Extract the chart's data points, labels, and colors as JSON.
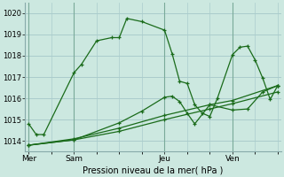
{
  "background_color": "#cce8e0",
  "grid_color": "#aacccc",
  "line_color": "#1a6b1a",
  "title": "Pression niveau de la mer( hPa )",
  "ylim": [
    1013.5,
    1020.5
  ],
  "yticks": [
    1014,
    1015,
    1016,
    1017,
    1018,
    1019,
    1020
  ],
  "xlabel_days": [
    "Mer",
    "Sam",
    "Jeu",
    "Ven"
  ],
  "xlabel_day_positions": [
    0,
    24,
    72,
    108
  ],
  "vline_positions": [
    0,
    24,
    72,
    108
  ],
  "series": [
    {
      "x": [
        0,
        4,
        8,
        24,
        28,
        36,
        44,
        48,
        52,
        60,
        72,
        76,
        80,
        84,
        88,
        92,
        96,
        100,
        108,
        112,
        116,
        120,
        124,
        128,
        132
      ],
      "y": [
        1014.8,
        1014.3,
        1014.3,
        1017.2,
        1017.6,
        1018.7,
        1018.85,
        1018.85,
        1019.75,
        1019.6,
        1019.2,
        1018.1,
        1016.8,
        1016.7,
        1015.7,
        1015.3,
        1015.15,
        1016.0,
        1018.05,
        1018.4,
        1018.45,
        1017.8,
        1016.95,
        1015.95,
        1016.6
      ]
    },
    {
      "x": [
        0,
        24,
        48,
        72,
        96,
        108,
        132
      ],
      "y": [
        1013.8,
        1014.1,
        1014.6,
        1015.2,
        1015.7,
        1015.9,
        1016.6
      ]
    },
    {
      "x": [
        0,
        24,
        48,
        72,
        96,
        108,
        132
      ],
      "y": [
        1013.8,
        1014.05,
        1014.45,
        1015.0,
        1015.5,
        1015.75,
        1016.3
      ]
    },
    {
      "x": [
        0,
        24,
        48,
        60,
        72,
        76,
        80,
        84,
        88,
        96,
        108,
        116,
        124,
        132
      ],
      "y": [
        1013.8,
        1014.05,
        1014.85,
        1015.4,
        1016.05,
        1016.1,
        1015.85,
        1015.3,
        1014.8,
        1015.7,
        1015.45,
        1015.5,
        1016.3,
        1016.6
      ]
    }
  ]
}
